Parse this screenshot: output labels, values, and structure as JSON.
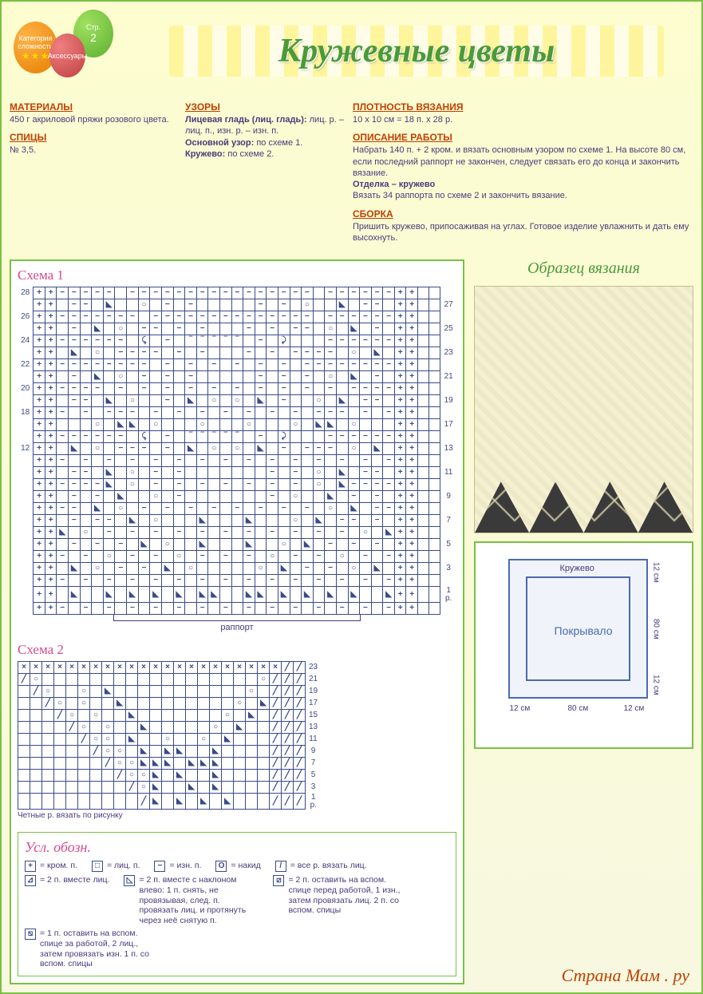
{
  "title": "Кружевные цветы",
  "balloons": {
    "orange": {
      "label": "Категория сложности",
      "stars": "★★★"
    },
    "green": {
      "label1": "Стр.",
      "label2": "2"
    },
    "red": {
      "label": "Аксессуары"
    }
  },
  "materials": {
    "title": "МАТЕРИАЛЫ",
    "text": "450 г акриловой пряжи розового цвета."
  },
  "needles": {
    "title": "СПИЦЫ",
    "text": "№ 3,5."
  },
  "patterns": {
    "title": "УЗОРЫ",
    "line1_b": "Лицевая гладь (лиц. гладь):",
    "line1": "лиц. р. – лиц. п., изн. р. – изн. п.",
    "line2_b": "Основной узор:",
    "line2": "по схеме 1.",
    "line3_b": "Кружево:",
    "line3": "по схеме 2."
  },
  "gauge": {
    "title": "ПЛОТНОСТЬ ВЯЗАНИЯ",
    "text": "10 х 10 см = 18 п. х 28 р."
  },
  "instr": {
    "title": "ОПИСАНИЕ РАБОТЫ",
    "text": "Набрать 140 п. + 2 кром. и вязать основным узором по схеме 1. На высоте 80 см, если последний раппорт не закончен, следует связать его до конца и закончить вязание.",
    "sub_b": "Отделка – кружево",
    "sub": "Вязать 34 раппорта по схеме 2 и закончить вязание."
  },
  "assembly": {
    "title": "СБОРКА",
    "text": "Пришить кружево, припосаживая на углах. Готовое изделие увлажнить и дать ему высохнуть."
  },
  "sample_title": "Образец вязания",
  "chart1": {
    "title": "Схема 1",
    "cols": 35,
    "left_labels": [
      28,
      "",
      26,
      "",
      24,
      "",
      22,
      "",
      20,
      "",
      18,
      "",
      "",
      12,
      "",
      "",
      "",
      "",
      "",
      "",
      "",
      "",
      "",
      "",
      "",
      "",
      ""
    ],
    "right_labels": [
      "",
      27,
      "",
      25,
      "",
      23,
      "",
      21,
      "",
      19,
      "",
      17,
      "",
      13,
      "",
      11,
      "",
      9,
      "",
      7,
      "",
      5,
      "",
      3,
      "",
      "1 р.",
      ""
    ],
    "rapport": "раппорт",
    "rows": [
      "++----- ---------------- ------++",
      "++ -- D  O - -     - - O  D -- ++",
      "++------- -------------- ------++",
      "++ - D O -- - -   - - -- O D - ++",
      "++------ > - _____ - <   ------++",
      "++ D O ---- - -   - - ---- O D ++",
      "++-------- - - - - - - --------++",
      "++ - D O - - -     - - - O D - ++",
      "++---- - - - - - - - - - - ----++",
      "++ -- D O  - D O O D -  O D -- ++",
      "++- - --- - - - - - - - --- - -++",
      "++   O DD O   O   O   O DD O   ++",
      "++------ > - _____ - <   ------++",
      "++ D O --- - D O O D - --- O D ++",
      "++- - - - - - - - - - - - - - -++",
      "++ -- D O - -       - - O D -- ++",
      "++----D O - - - - - - - O D----++",
      "++ - - D  O -       - O  D - - ++",
      "++-- D O - - - - - - - - O D --++",
      "++ - -- D O   D   D   O D -- - ++",
      "++D O - - - - - - - - - - - O D++",
      "++ - - - D O  D   D  O D - - - ++",
      "++- - O - - O - - - O - - O - -++",
      "++ D O - - D O     O D - - O D ++",
      "++- - - - - - - - - - - - - - -++",
      "++ D  D D D D DD  DD D D D D  D++",
      "++- - - - - - - - - - - - - - -++"
    ]
  },
  "chart2": {
    "title": "Схема 2",
    "cols": 24,
    "right_labels": [
      23,
      21,
      19,
      17,
      15,
      13,
      11,
      9,
      7,
      5,
      3,
      "1 р."
    ],
    "note": "Четные р. вязать по рисунку",
    "rows": [
      "xxxxxxxxxxxxxxxxxxxxxx//",
      "/O                  O///",
      " /O  O D           O ///",
      "  /O O  D         O D///",
      "   /O O  D       O D ///",
      "    /O O  D     O D  ///",
      "     /OO D  O  O D   ///",
      "      /OO D DD  D    ///",
      "       /OODDD DDD    ///",
      "        /OOD D  D    ///",
      "         /OD  D D    ///",
      "          /D D D D   ///"
    ]
  },
  "legend": {
    "title": "Усл. обозн.",
    "items": [
      {
        "sym": "+",
        "text": "= кром. п."
      },
      {
        "sym": "□",
        "text": "= лиц. п."
      },
      {
        "sym": "−",
        "text": "= изн. п."
      },
      {
        "sym": "O",
        "text": "= накид"
      },
      {
        "sym": "/",
        "text": "= все р. вязать лиц."
      },
      {
        "sym": "⊿",
        "text": "= 2 п. вместе лиц."
      },
      {
        "sym": "◺",
        "text": "= 2 п. вместе с наклоном влево: 1 п. снять, не провязывая, след. п. провязать лиц. и протянуть через неё снятую п."
      },
      {
        "sym": "⧄",
        "text": "= 2 п. оставить на вспом. спице перед работой, 1 изн., затем провязать лиц. 2 п. со вспом. спицы"
      },
      {
        "sym": "⧅",
        "text": "= 1 п. оставить на вспом. спице за работой, 2 лиц., затем провязать изн. 1 п. со вспом. спицы"
      }
    ]
  },
  "schematic": {
    "outer_label": "Кружево",
    "inner_label": "Покрывало",
    "dims": {
      "w_border": "12 см",
      "w_main": "80 см",
      "h_border": "12 см",
      "h_main": "80 см"
    }
  },
  "watermark": "Страна Мам . ру"
}
